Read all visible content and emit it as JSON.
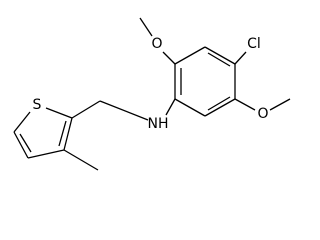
{
  "labels": [
    "S",
    "NH",
    "Cl",
    "O",
    "O"
  ]
}
